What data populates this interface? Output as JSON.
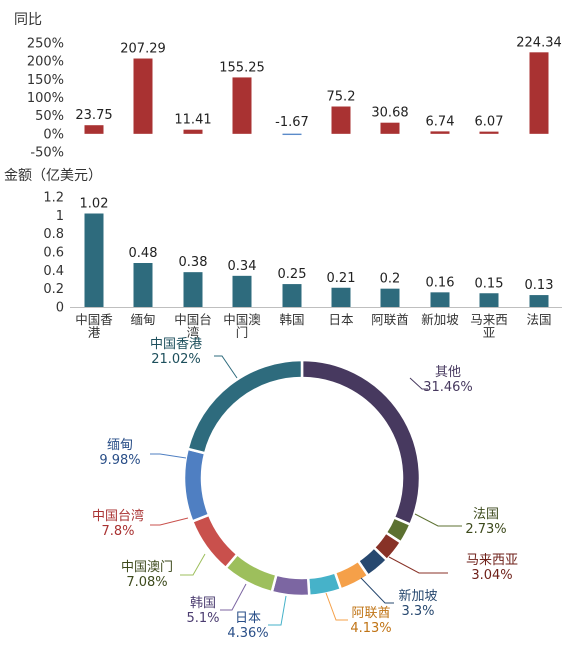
{
  "chart_data": [
    {
      "type": "bar",
      "ylabel": "同比",
      "ylim": [
        -50,
        250
      ],
      "yticks": [
        "250%",
        "200%",
        "150%",
        "100%",
        "50%",
        "0%",
        "-50%"
      ],
      "value_labels": [
        "23.75",
        "207.29",
        "11.41",
        "155.25",
        "-1.67",
        "75.2",
        "30.68",
        "6.74",
        "6.07",
        "224.34"
      ],
      "values": [
        23.75,
        207.29,
        11.41,
        155.25,
        -1.67,
        75.2,
        30.68,
        6.74,
        6.07,
        224.34
      ],
      "color": "#a93232",
      "grid": false
    },
    {
      "type": "bar",
      "ylabel": "金额（亿美元）",
      "ylim": [
        0,
        1.2
      ],
      "yticks": [
        "1.2",
        "1",
        "0.8",
        "0.6",
        "0.4",
        "0.2",
        "0"
      ],
      "categories": [
        [
          "中国香",
          "港"
        ],
        [
          "缅甸"
        ],
        [
          "中国台",
          "湾"
        ],
        [
          "中国澳",
          "门"
        ],
        [
          "韩国"
        ],
        [
          "日本"
        ],
        [
          "阿联酋"
        ],
        [
          "新加坡"
        ],
        [
          "马来西",
          "亚"
        ],
        [
          "法国"
        ]
      ],
      "value_labels": [
        "1.02",
        "0.48",
        "0.38",
        "0.34",
        "0.25",
        "0.21",
        "0.2",
        "0.16",
        "0.15",
        "0.13"
      ],
      "values": [
        1.02,
        0.48,
        0.38,
        0.34,
        0.25,
        0.21,
        0.2,
        0.16,
        0.15,
        0.13
      ],
      "color": "#2e6b7d",
      "grid": false
    },
    {
      "type": "pie",
      "style": "donut",
      "slices": [
        {
          "name": "其他",
          "pct": "31.46%",
          "value": 31.46,
          "color": "#47395f"
        },
        {
          "name": "法国",
          "pct": "2.73%",
          "value": 2.73,
          "color": "#5c7131"
        },
        {
          "name": "马来西亚",
          "pct": "3.04%",
          "value": 3.04,
          "color": "#883227"
        },
        {
          "name": "新加坡",
          "pct": "3.3%",
          "value": 3.3,
          "color": "#27486f"
        },
        {
          "name": "阿联酋",
          "pct": "4.13%",
          "value": 4.13,
          "color": "#f5a049"
        },
        {
          "name": "日本",
          "pct": "4.36%",
          "value": 4.36,
          "color": "#46b2c9"
        },
        {
          "name": "韩国",
          "pct": "5.1%",
          "value": 5.1,
          "color": "#7c66a2"
        },
        {
          "name": "中国澳门",
          "pct": "7.08%",
          "value": 7.08,
          "color": "#9dbf5c"
        },
        {
          "name": "中国台湾",
          "pct": "7.8%",
          "value": 7.8,
          "color": "#c9504c"
        },
        {
          "name": "缅甸",
          "pct": "9.98%",
          "value": 9.98,
          "color": "#4f7fc2"
        },
        {
          "name": "中国香港",
          "pct": "21.02%",
          "value": 21.02,
          "color": "#2e6b7d"
        }
      ],
      "label_colors": {
        "其他": "#47395f",
        "法国": "#3d4a1c",
        "马来西亚": "#6e1f18",
        "新加坡": "#27486f",
        "阿联酋": "#c07416",
        "日本": "#2a4f88",
        "韩国": "#4b3c70",
        "中国澳门": "#3d4a1c",
        "中国台湾": "#a93232",
        "缅甸": "#2a4f88",
        "中国香港": "#1d4f5c"
      }
    }
  ]
}
